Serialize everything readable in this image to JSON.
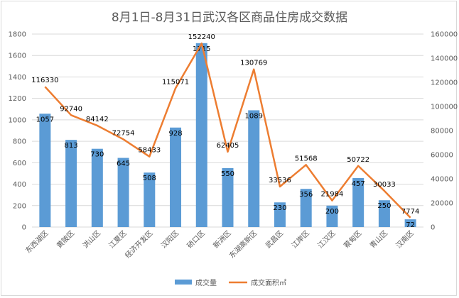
{
  "chart_data": {
    "type": "bar",
    "title": "8月1日-8月31日武汉各区商品住房成交数据",
    "categories": [
      "东西湖区",
      "黄陂区",
      "洪山区",
      "江夏区",
      "经济开发区",
      "汉阳区",
      "硚口区",
      "新洲区",
      "东湖高新区",
      "武昌区",
      "江岸区",
      "江汉区",
      "蔡甸区",
      "青山区",
      "汉南区"
    ],
    "series": [
      {
        "name": "成交量",
        "type": "bar",
        "axis": "left",
        "values": [
          1057,
          813,
          730,
          645,
          508,
          928,
          1715,
          550,
          1089,
          230,
          356,
          200,
          457,
          250,
          72
        ],
        "color": "#5b9bd5"
      },
      {
        "name": "成交面积㎡",
        "type": "line",
        "axis": "right",
        "values": [
          116330,
          92740,
          84142,
          72754,
          58433,
          115071,
          152240,
          62405,
          130769,
          33536,
          51568,
          21984,
          50722,
          30033,
          7774
        ],
        "color": "#ed7d31"
      }
    ],
    "left_axis": {
      "min": 0,
      "max": 1800,
      "step": 200
    },
    "right_axis": {
      "min": 0,
      "max": 160000,
      "step": 20000
    },
    "grid": true,
    "legend_position": "bottom"
  }
}
